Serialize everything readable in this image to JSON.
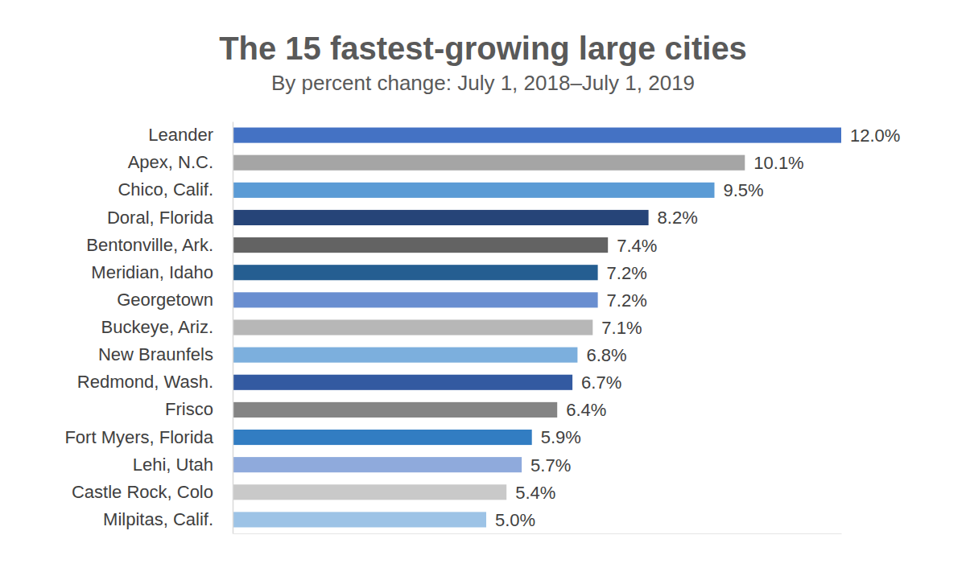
{
  "chart_data": {
    "type": "bar",
    "orientation": "horizontal",
    "title": "The 15 fastest-growing large cities",
    "subtitle": "By percent change: July 1, 2018–July 1, 2019",
    "categories": [
      "Leander",
      "Apex, N.C.",
      "Chico, Calif.",
      "Doral, Florida",
      "Bentonville, Ark.",
      "Meridian, Idaho",
      "Georgetown",
      "Buckeye, Ariz.",
      "New Braunfels",
      "Redmond, Wash.",
      "Frisco",
      "Fort Myers, Florida",
      "Lehi, Utah",
      "Castle Rock, Colo",
      "Milpitas, Calif."
    ],
    "values": [
      12.0,
      10.1,
      9.5,
      8.2,
      7.4,
      7.2,
      7.2,
      7.1,
      6.8,
      6.7,
      6.4,
      5.9,
      5.7,
      5.4,
      5.0
    ],
    "value_labels": [
      "12.0%",
      "10.1%",
      "9.5%",
      "8.2%",
      "7.4%",
      "7.2%",
      "7.2%",
      "7.1%",
      "6.8%",
      "6.7%",
      "6.4%",
      "5.9%",
      "5.7%",
      "5.4%",
      "5.0%"
    ],
    "colors": [
      "#4472c4",
      "#a5a5a5",
      "#5b9bd5",
      "#264478",
      "#636363",
      "#255e91",
      "#698ed0",
      "#b7b7b7",
      "#7cafdd",
      "#335aa1",
      "#848484",
      "#327dc2",
      "#8faadc",
      "#c9c9c9",
      "#9dc3e6"
    ],
    "xlim": [
      0,
      12
    ],
    "xticks": [],
    "data_labels": true,
    "tick_labels": "y",
    "grid": false
  }
}
